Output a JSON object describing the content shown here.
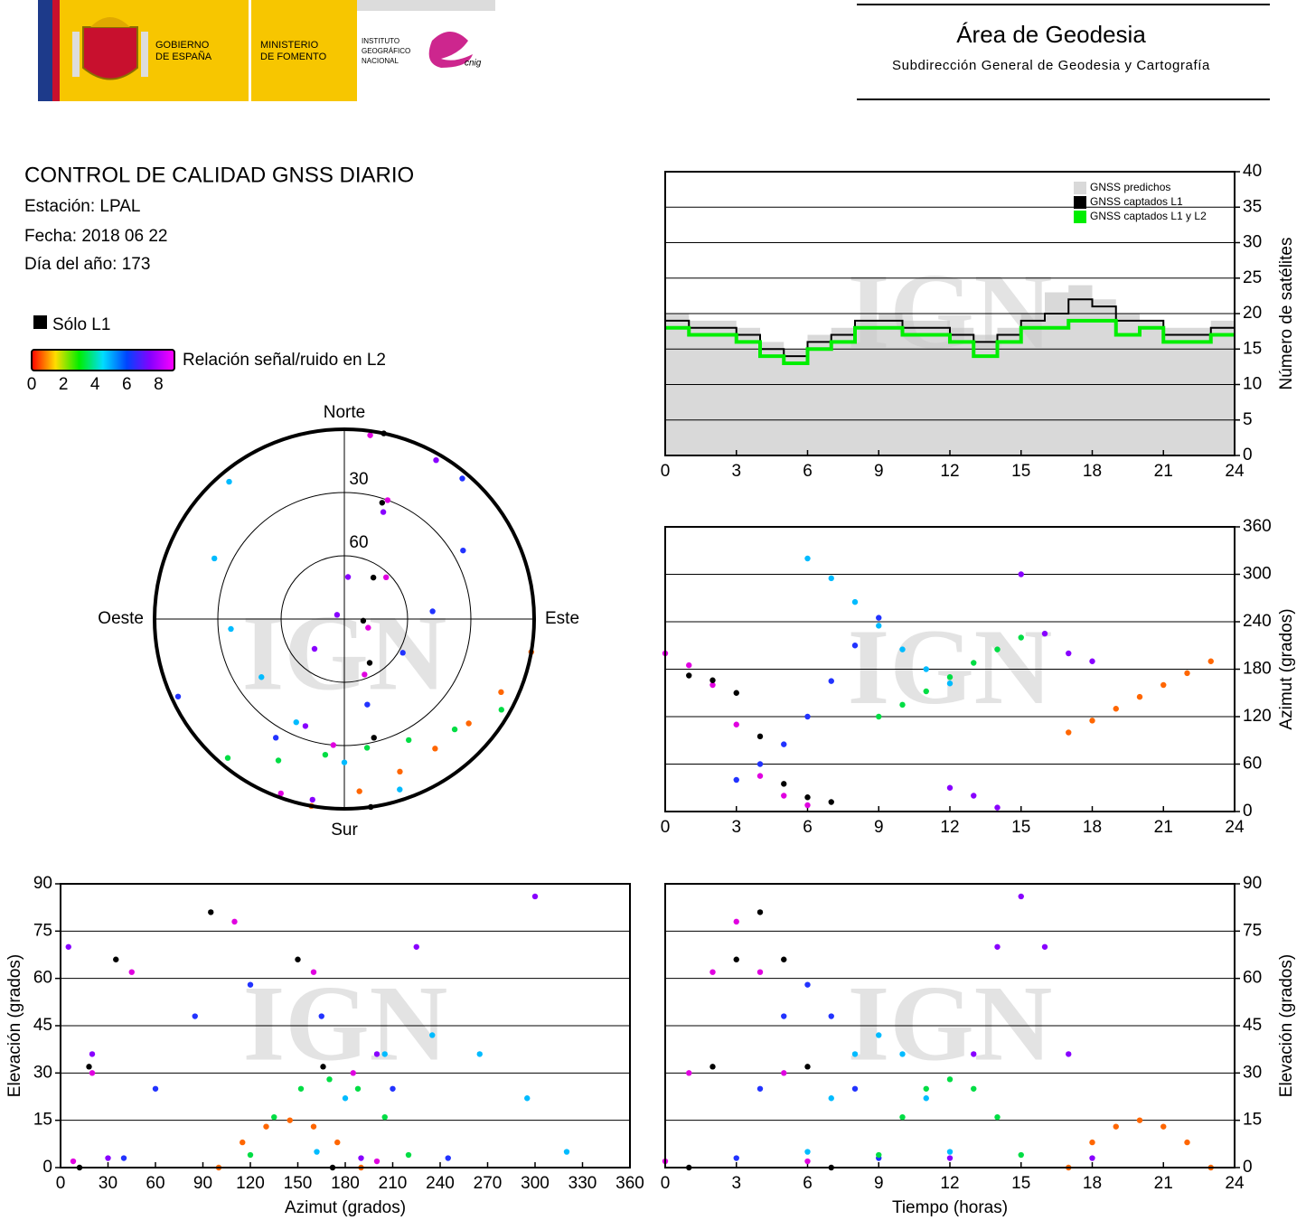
{
  "header": {
    "government": [
      "GOBIERNO",
      "DE ESPAÑA"
    ],
    "ministry": [
      "MINISTERIO",
      "DE FOMENTO"
    ],
    "institute": [
      "INSTITUTO",
      "GEOGRÁFICO",
      "NACIONAL"
    ],
    "logo": "cnig",
    "area": "Área de Geodesia",
    "subdirectorate": "Subdirección General de Geodesia y Cartografía"
  },
  "info": {
    "title": "CONTROL DE CALIDAD GNSS DIARIO",
    "station": "Estación: LPAL",
    "date": "Fecha: 2018 06 22",
    "day_of_year": "Día del año: 173"
  },
  "chart_data": [
    {
      "type": "line",
      "step": true,
      "watermark": "IGN",
      "grid": true,
      "yaxis": "right",
      "legend": "upper right",
      "ylabel": "Número de satélites",
      "x": [
        0,
        1,
        2,
        3,
        4,
        5,
        6,
        7,
        8,
        9,
        10,
        11,
        12,
        13,
        14,
        15,
        16,
        17,
        18,
        19,
        20,
        21,
        22,
        23,
        24
      ],
      "xlim": [
        0,
        24
      ],
      "xticks": [
        0,
        3,
        6,
        9,
        12,
        15,
        18,
        21,
        24
      ],
      "ylim": [
        0,
        40
      ],
      "yticks": [
        0,
        5,
        10,
        15,
        20,
        25,
        30,
        35,
        40
      ],
      "series": [
        {
          "name": "GNSS predichos",
          "color": "#d9d9d9",
          "area": true,
          "values": [
            20,
            19,
            19,
            18,
            16,
            15,
            17,
            18,
            19,
            20,
            19,
            19,
            18,
            17,
            18,
            20,
            23,
            24,
            22,
            20,
            19,
            18,
            18,
            19,
            19
          ]
        },
        {
          "name": "GNSS captados L1",
          "color": "#000000",
          "line_width": 2,
          "values": [
            19,
            18,
            18,
            17,
            15,
            14,
            16,
            17,
            19,
            19,
            18,
            18,
            17,
            16,
            17,
            19,
            20,
            22,
            21,
            19,
            19,
            17,
            17,
            18,
            18
          ]
        },
        {
          "name": "GNSS captados L1 y L2",
          "color": "#00ee00",
          "line_width": 4,
          "values": [
            18,
            17,
            17,
            16,
            14,
            13,
            15,
            16,
            18,
            18,
            17,
            17,
            16,
            14,
            16,
            18,
            18,
            19,
            19,
            17,
            18,
            16,
            16,
            17,
            17
          ]
        }
      ]
    },
    {
      "type": "polar",
      "watermark": "IGN",
      "rlim": [
        90,
        0
      ],
      "rticks": [
        30,
        60
      ],
      "directions": {
        "north": "Norte",
        "east": "Este",
        "south": "Sur",
        "west": "Oeste"
      },
      "solo_l1": {
        "label": "Sólo L1",
        "color": "#000000"
      },
      "colorbar": {
        "label": "Relación señal/ruido en L2",
        "lim": [
          0,
          9
        ],
        "ticks": [
          0,
          2,
          4,
          6,
          8
        ],
        "colors": [
          "#ff0000",
          "#ffdd00",
          "#00ee00",
          "#00ddff",
          "#0044ff",
          "#8800ff",
          "#ff00ff"
        ]
      },
      "series": [
        {
          "color": "#e000e0",
          "azimuth": [
            200,
            185,
            160,
            110,
            45,
            20,
            8
          ],
          "elevation": [
            2,
            30,
            62,
            78,
            62,
            30,
            2
          ]
        },
        {
          "color": "#2233ff",
          "azimuth": [
            40,
            60,
            85,
            120,
            165,
            210,
            245
          ],
          "elevation": [
            3,
            25,
            48,
            58,
            48,
            25,
            3
          ]
        },
        {
          "color": "#00bbff",
          "azimuth": [
            320,
            295,
            265,
            235,
            205,
            180,
            162
          ],
          "elevation": [
            5,
            22,
            36,
            42,
            36,
            22,
            5
          ]
        },
        {
          "color": "#00dd44",
          "azimuth": [
            120,
            135,
            152,
            170,
            188,
            205,
            220
          ],
          "elevation": [
            4,
            16,
            25,
            28,
            25,
            16,
            4
          ]
        },
        {
          "color": "#000000",
          "azimuth": [
            172,
            166,
            150,
            95,
            35,
            18,
            12
          ],
          "elevation": [
            0,
            32,
            66,
            81,
            66,
            32,
            0
          ]
        },
        {
          "color": "#8800ff",
          "azimuth": [
            30,
            20,
            5,
            300,
            225,
            200,
            190
          ],
          "elevation": [
            3,
            36,
            70,
            86,
            70,
            36,
            3
          ]
        },
        {
          "color": "#ff6600",
          "azimuth": [
            100,
            115,
            130,
            145,
            160,
            175,
            190
          ],
          "elevation": [
            0,
            8,
            13,
            15,
            13,
            8,
            0
          ]
        }
      ]
    },
    {
      "type": "scatter",
      "watermark": "IGN",
      "grid": true,
      "yaxis": "right",
      "ylabel": "Azimut (grados)",
      "xlim": [
        0,
        24
      ],
      "xticks": [
        0,
        3,
        6,
        9,
        12,
        15,
        18,
        21,
        24
      ],
      "ylim": [
        0,
        360
      ],
      "yticks": [
        0,
        60,
        120,
        180,
        240,
        300,
        360
      ],
      "series": [
        {
          "color": "#e000e0",
          "x": [
            0,
            1,
            2,
            3,
            4,
            5,
            6
          ],
          "values": [
            200,
            185,
            160,
            110,
            45,
            20,
            8
          ]
        },
        {
          "color": "#2233ff",
          "x": [
            3,
            4,
            5,
            6,
            7,
            8,
            9
          ],
          "values": [
            40,
            60,
            85,
            120,
            165,
            210,
            245
          ]
        },
        {
          "color": "#00bbff",
          "x": [
            6,
            7,
            8,
            9,
            10,
            11,
            12
          ],
          "values": [
            320,
            295,
            265,
            235,
            205,
            180,
            162
          ]
        },
        {
          "color": "#00dd44",
          "x": [
            9,
            10,
            11,
            12,
            13,
            14,
            15
          ],
          "values": [
            120,
            135,
            152,
            170,
            188,
            205,
            220
          ]
        },
        {
          "color": "#000000",
          "x": [
            1,
            2,
            3,
            4,
            5,
            6,
            7
          ],
          "values": [
            172,
            166,
            150,
            95,
            35,
            18,
            12
          ]
        },
        {
          "color": "#8800ff",
          "x": [
            12,
            13,
            14,
            15,
            16,
            17,
            18
          ],
          "values": [
            30,
            20,
            5,
            300,
            225,
            200,
            190
          ]
        },
        {
          "color": "#ff6600",
          "x": [
            17,
            18,
            19,
            20,
            21,
            22,
            23
          ],
          "values": [
            100,
            115,
            130,
            145,
            160,
            175,
            190
          ]
        }
      ]
    },
    {
      "type": "scatter",
      "watermark": "IGN",
      "grid": true,
      "yaxis": "left",
      "xlabel": "Azimut (grados)",
      "ylabel": "Elevación (grados)",
      "xlim": [
        0,
        360
      ],
      "xticks": [
        0,
        30,
        60,
        90,
        120,
        150,
        180,
        210,
        240,
        270,
        300,
        330,
        360
      ],
      "ylim": [
        0,
        90
      ],
      "yticks": [
        0,
        15,
        30,
        45,
        60,
        75,
        90
      ],
      "series": [
        {
          "color": "#e000e0",
          "x": [
            200,
            185,
            160,
            110,
            45,
            20,
            8
          ],
          "values": [
            2,
            30,
            62,
            78,
            62,
            30,
            2
          ]
        },
        {
          "color": "#2233ff",
          "x": [
            40,
            60,
            85,
            120,
            165,
            210,
            245
          ],
          "values": [
            3,
            25,
            48,
            58,
            48,
            25,
            3
          ]
        },
        {
          "color": "#00bbff",
          "x": [
            320,
            295,
            265,
            235,
            205,
            180,
            162
          ],
          "values": [
            5,
            22,
            36,
            42,
            36,
            22,
            5
          ]
        },
        {
          "color": "#00dd44",
          "x": [
            120,
            135,
            152,
            170,
            188,
            205,
            220
          ],
          "values": [
            4,
            16,
            25,
            28,
            25,
            16,
            4
          ]
        },
        {
          "color": "#000000",
          "x": [
            172,
            166,
            150,
            95,
            35,
            18,
            12
          ],
          "values": [
            0,
            32,
            66,
            81,
            66,
            32,
            0
          ]
        },
        {
          "color": "#8800ff",
          "x": [
            30,
            20,
            5,
            300,
            225,
            200,
            190
          ],
          "values": [
            3,
            36,
            70,
            86,
            70,
            36,
            3
          ]
        },
        {
          "color": "#ff6600",
          "x": [
            100,
            115,
            130,
            145,
            160,
            175,
            190
          ],
          "values": [
            0,
            8,
            13,
            15,
            13,
            8,
            0
          ]
        }
      ]
    },
    {
      "type": "scatter",
      "watermark": "IGN",
      "grid": true,
      "yaxis": "right",
      "xlabel": "Tiempo (horas)",
      "ylabel": "Elevación (grados)",
      "xlim": [
        0,
        24
      ],
      "xticks": [
        0,
        3,
        6,
        9,
        12,
        15,
        18,
        21,
        24
      ],
      "ylim": [
        0,
        90
      ],
      "yticks": [
        0,
        15,
        30,
        45,
        60,
        75,
        90
      ],
      "series": [
        {
          "color": "#e000e0",
          "x": [
            0,
            1,
            2,
            3,
            4,
            5,
            6
          ],
          "values": [
            2,
            30,
            62,
            78,
            62,
            30,
            2
          ]
        },
        {
          "color": "#2233ff",
          "x": [
            3,
            4,
            5,
            6,
            7,
            8,
            9
          ],
          "values": [
            3,
            25,
            48,
            58,
            48,
            25,
            3
          ]
        },
        {
          "color": "#00bbff",
          "x": [
            6,
            7,
            8,
            9,
            10,
            11,
            12
          ],
          "values": [
            5,
            22,
            36,
            42,
            36,
            22,
            5
          ]
        },
        {
          "color": "#00dd44",
          "x": [
            9,
            10,
            11,
            12,
            13,
            14,
            15
          ],
          "values": [
            4,
            16,
            25,
            28,
            25,
            16,
            4
          ]
        },
        {
          "color": "#000000",
          "x": [
            1,
            2,
            3,
            4,
            5,
            6,
            7
          ],
          "values": [
            0,
            32,
            66,
            81,
            66,
            32,
            0
          ]
        },
        {
          "color": "#8800ff",
          "x": [
            12,
            13,
            14,
            15,
            16,
            17,
            18
          ],
          "values": [
            3,
            36,
            70,
            86,
            70,
            36,
            3
          ]
        },
        {
          "color": "#ff6600",
          "x": [
            17,
            18,
            19,
            20,
            21,
            22,
            23
          ],
          "values": [
            0,
            8,
            13,
            15,
            13,
            8,
            0
          ]
        }
      ]
    }
  ]
}
